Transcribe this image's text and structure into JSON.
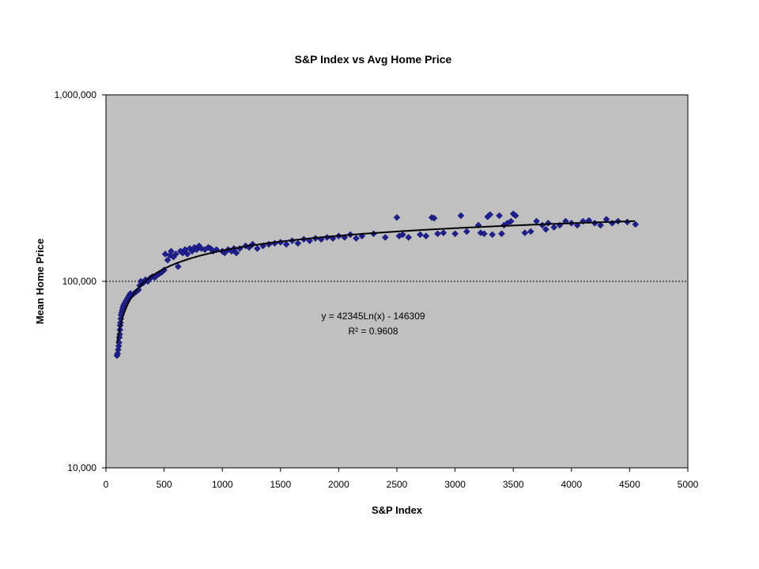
{
  "chart_data": {
    "type": "scatter",
    "title": "S&P Index vs Avg Home Price",
    "xlabel": "S&P Index",
    "ylabel": "Mean Home Price",
    "xlim": [
      0,
      5000
    ],
    "ylim": [
      10000,
      1000000
    ],
    "y_scale": "log",
    "x_ticks": [
      "0",
      "500",
      "1000",
      "1500",
      "2000",
      "2500",
      "3000",
      "3500",
      "4000",
      "4500",
      "5000"
    ],
    "y_ticks": [
      "10,000",
      "100,000",
      "1,000,000"
    ],
    "grid": "dashed horizontal line at 100,000",
    "plot_background": "#c0c0c0",
    "marker_color": "#1f1f8f",
    "trendline": {
      "type": "logarithmic",
      "a": 42345,
      "b": -146309,
      "equation": "y = 42345Ln(x) - 146309",
      "r_squared": "R² = 0.9608"
    },
    "series": [
      {
        "points": [
          [
            95,
            40000
          ],
          [
            100,
            41000
          ],
          [
            105,
            43000
          ],
          [
            110,
            45000
          ],
          [
            112,
            47000
          ],
          [
            115,
            50000
          ],
          [
            118,
            52000
          ],
          [
            120,
            55000
          ],
          [
            122,
            58000
          ],
          [
            125,
            60000
          ],
          [
            128,
            63000
          ],
          [
            130,
            66000
          ],
          [
            135,
            68000
          ],
          [
            140,
            70000
          ],
          [
            145,
            72000
          ],
          [
            150,
            74000
          ],
          [
            160,
            76000
          ],
          [
            170,
            78000
          ],
          [
            180,
            80000
          ],
          [
            190,
            82000
          ],
          [
            200,
            84000
          ],
          [
            210,
            86000
          ],
          [
            220,
            84000
          ],
          [
            240,
            86000
          ],
          [
            260,
            88000
          ],
          [
            280,
            90000
          ],
          [
            290,
            95000
          ],
          [
            300,
            100000
          ],
          [
            320,
            98000
          ],
          [
            340,
            102000
          ],
          [
            360,
            100000
          ],
          [
            380,
            104000
          ],
          [
            400,
            106000
          ],
          [
            420,
            105000
          ],
          [
            440,
            108000
          ],
          [
            460,
            110000
          ],
          [
            480,
            112000
          ],
          [
            500,
            115000
          ],
          [
            510,
            140000
          ],
          [
            530,
            130000
          ],
          [
            550,
            138000
          ],
          [
            560,
            145000
          ],
          [
            580,
            135000
          ],
          [
            600,
            140000
          ],
          [
            620,
            120000
          ],
          [
            640,
            145000
          ],
          [
            660,
            142000
          ],
          [
            680,
            148000
          ],
          [
            700,
            140000
          ],
          [
            720,
            150000
          ],
          [
            740,
            145000
          ],
          [
            760,
            152000
          ],
          [
            780,
            148000
          ],
          [
            800,
            155000
          ],
          [
            820,
            150000
          ],
          [
            850,
            148000
          ],
          [
            880,
            152000
          ],
          [
            900,
            150000
          ],
          [
            920,
            145000
          ],
          [
            950,
            148000
          ],
          [
            1000,
            145000
          ],
          [
            1020,
            142000
          ],
          [
            1050,
            148000
          ],
          [
            1080,
            145000
          ],
          [
            1100,
            150000
          ],
          [
            1120,
            142000
          ],
          [
            1150,
            150000
          ],
          [
            1200,
            155000
          ],
          [
            1230,
            152000
          ],
          [
            1260,
            158000
          ],
          [
            1300,
            150000
          ],
          [
            1350,
            155000
          ],
          [
            1400,
            158000
          ],
          [
            1450,
            160000
          ],
          [
            1500,
            162000
          ],
          [
            1550,
            158000
          ],
          [
            1600,
            165000
          ],
          [
            1650,
            160000
          ],
          [
            1700,
            168000
          ],
          [
            1750,
            165000
          ],
          [
            1800,
            170000
          ],
          [
            1850,
            168000
          ],
          [
            1900,
            172000
          ],
          [
            1950,
            170000
          ],
          [
            2000,
            175000
          ],
          [
            2050,
            172000
          ],
          [
            2100,
            178000
          ],
          [
            2150,
            170000
          ],
          [
            2200,
            175000
          ],
          [
            2300,
            180000
          ],
          [
            2400,
            172000
          ],
          [
            2500,
            220000
          ],
          [
            2520,
            175000
          ],
          [
            2550,
            178000
          ],
          [
            2600,
            172000
          ],
          [
            2700,
            178000
          ],
          [
            2750,
            175000
          ],
          [
            2800,
            220000
          ],
          [
            2820,
            218000
          ],
          [
            2850,
            180000
          ],
          [
            2900,
            182000
          ],
          [
            3000,
            180000
          ],
          [
            3050,
            225000
          ],
          [
            3100,
            185000
          ],
          [
            3200,
            200000
          ],
          [
            3220,
            182000
          ],
          [
            3250,
            180000
          ],
          [
            3280,
            222000
          ],
          [
            3300,
            228000
          ],
          [
            3320,
            178000
          ],
          [
            3380,
            225000
          ],
          [
            3400,
            180000
          ],
          [
            3420,
            200000
          ],
          [
            3450,
            205000
          ],
          [
            3480,
            210000
          ],
          [
            3500,
            230000
          ],
          [
            3520,
            225000
          ],
          [
            3600,
            182000
          ],
          [
            3650,
            185000
          ],
          [
            3700,
            210000
          ],
          [
            3750,
            200000
          ],
          [
            3780,
            190000
          ],
          [
            3800,
            205000
          ],
          [
            3850,
            195000
          ],
          [
            3900,
            200000
          ],
          [
            3950,
            210000
          ],
          [
            4000,
            205000
          ],
          [
            4050,
            200000
          ],
          [
            4100,
            210000
          ],
          [
            4150,
            212000
          ],
          [
            4200,
            205000
          ],
          [
            4250,
            200000
          ],
          [
            4300,
            215000
          ],
          [
            4350,
            205000
          ],
          [
            4400,
            210000
          ],
          [
            4480,
            208000
          ],
          [
            4550,
            202000
          ]
        ]
      }
    ]
  }
}
